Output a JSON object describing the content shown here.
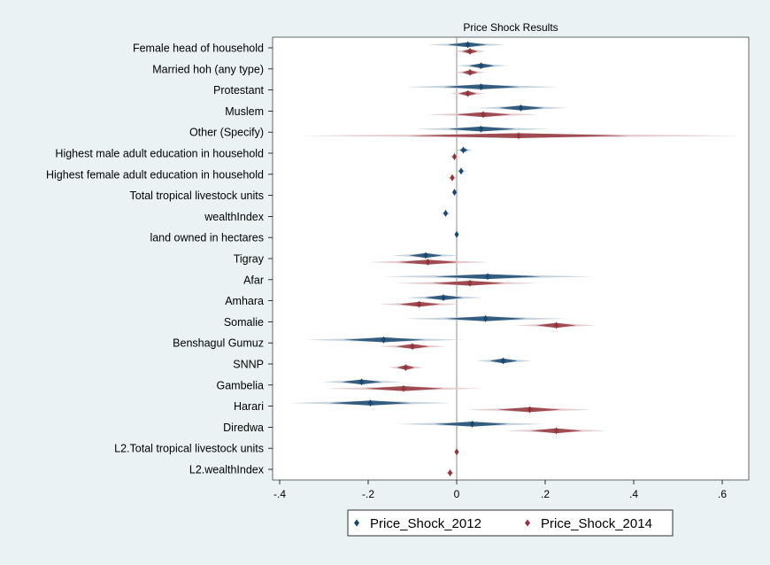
{
  "chart_data": {
    "type": "coefficient-plot",
    "title": "Price Shock Results",
    "xlabel": "",
    "ylabel": "",
    "xlim": [
      -0.4,
      0.66
    ],
    "x_ticks": [
      {
        "value": -0.4,
        "label": "-.4"
      },
      {
        "value": -0.2,
        "label": "-.2"
      },
      {
        "value": 0,
        "label": "0"
      },
      {
        "value": 0.2,
        "label": ".2"
      },
      {
        "value": 0.4,
        "label": ".4"
      },
      {
        "value": 0.6,
        "label": ".6"
      }
    ],
    "reference_line": 0,
    "grid": false,
    "legend_position": "bottom",
    "categories": [
      "Female head of household",
      "Married hoh (any type)",
      "Protestant",
      "Muslem",
      "Other (Specify)",
      "Highest male adult education in household",
      "Highest female adult education in household",
      "Total tropical livestock units",
      "wealthIndex",
      "land owned in hectares",
      "Tigray",
      "Afar",
      "Amhara",
      "Somalie",
      "Benshagul Gumuz",
      "SNNP",
      "Gambelia",
      "Harari",
      "Diredwa",
      "L2.Total tropical livestock units",
      "L2.wealthIndex"
    ],
    "series": [
      {
        "name": "Price_Shock_2012",
        "color": "#1a476f",
        "light_color": "#c7d4df",
        "estimates": [
          0.025,
          0.055,
          0.055,
          0.145,
          0.055,
          0.015,
          0.01,
          -0.005,
          -0.025,
          0.0,
          -0.07,
          0.07,
          -0.03,
          0.065,
          -0.165,
          0.105,
          -0.215,
          -0.195,
          0.035,
          null,
          null
        ],
        "ci_low": [
          -0.065,
          0.0,
          -0.115,
          0.045,
          -0.095,
          0.0,
          0.0,
          -0.01,
          -0.035,
          -0.003,
          -0.145,
          -0.17,
          -0.115,
          -0.12,
          -0.345,
          0.045,
          -0.305,
          -0.38,
          -0.135,
          null,
          null
        ],
        "ci_high": [
          0.11,
          0.115,
          0.23,
          0.25,
          0.21,
          0.035,
          0.02,
          0.0,
          -0.015,
          0.003,
          0.005,
          0.31,
          0.06,
          0.25,
          0.02,
          0.17,
          -0.125,
          -0.01,
          0.2,
          null,
          null
        ]
      },
      {
        "name": "Price_Shock_2014",
        "color": "#90353b",
        "light_color": "#e6cdd0",
        "estimates": [
          0.03,
          0.03,
          0.025,
          0.06,
          0.14,
          -0.005,
          -0.01,
          null,
          null,
          null,
          -0.065,
          0.03,
          -0.085,
          0.225,
          -0.1,
          -0.115,
          -0.12,
          0.165,
          0.225,
          0.0,
          -0.015
        ],
        "ci_low": [
          -0.005,
          -0.005,
          -0.015,
          -0.065,
          -0.36,
          -0.015,
          -0.02,
          null,
          null,
          null,
          -0.2,
          -0.14,
          -0.175,
          0.135,
          -0.175,
          -0.155,
          -0.295,
          0.02,
          0.11,
          -0.005,
          -0.025
        ],
        "ci_high": [
          0.065,
          0.065,
          0.065,
          0.185,
          0.64,
          0.005,
          0.0,
          null,
          null,
          null,
          0.075,
          0.185,
          0.01,
          0.315,
          -0.025,
          -0.075,
          0.06,
          0.305,
          0.34,
          0.005,
          -0.005
        ]
      }
    ]
  }
}
